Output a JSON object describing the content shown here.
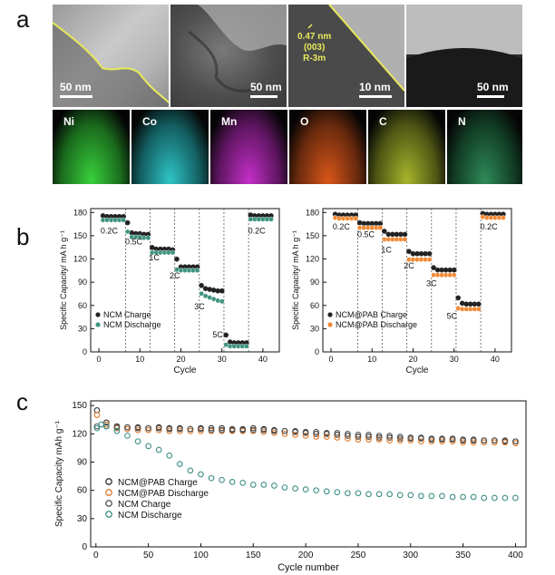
{
  "panel_labels": {
    "a": "a",
    "b": "b",
    "c": "c"
  },
  "panel_a": {
    "tem_images": [
      {
        "scale_bar": "50 nm"
      },
      {
        "scale_bar": "50 nm"
      },
      {
        "scale_bar": "10 nm",
        "annotation_lines": [
          "0.47 nm",
          "(003)",
          "R-3m"
        ]
      },
      {
        "scale_bar": "50 nm"
      }
    ],
    "element_maps": [
      {
        "label": "Ni",
        "color": "#39d13c"
      },
      {
        "label": "Co",
        "color": "#2fc4c6"
      },
      {
        "label": "Mn",
        "color": "#c42fc8"
      },
      {
        "label": "O",
        "color": "#d8561a"
      },
      {
        "label": "C",
        "color": "#a6b62c"
      },
      {
        "label": "N",
        "color": "#2e8a57"
      }
    ]
  },
  "chart_data": [
    {
      "type": "scatter",
      "panel": "b-left",
      "xlabel": "Cycle",
      "ylabel": "Specific Capacity/ mA h g⁻¹",
      "xlim": [
        -2,
        44
      ],
      "ylim": [
        0,
        185
      ],
      "xticks": [
        0,
        10,
        20,
        30,
        40
      ],
      "yticks": [
        0,
        30,
        60,
        90,
        120,
        150,
        180
      ],
      "rate_labels": [
        {
          "text": "0.2C",
          "x": 2.5,
          "y": 153
        },
        {
          "text": "0.5C",
          "x": 8.5,
          "y": 139
        },
        {
          "text": "1C",
          "x": 13.5,
          "y": 118
        },
        {
          "text": "2C",
          "x": 18.5,
          "y": 95
        },
        {
          "text": "3C",
          "x": 24.5,
          "y": 55
        },
        {
          "text": "5C",
          "x": 29.0,
          "y": 19
        },
        {
          "text": "0.2C",
          "x": 38.5,
          "y": 153
        }
      ],
      "dividers": [
        6.5,
        12.5,
        18.5,
        24.5,
        30.5,
        36.5
      ],
      "series": [
        {
          "name": "NCM Charge",
          "color": "#222222",
          "values": [
            174,
            173,
            173,
            173,
            173,
            173,
            165,
            152,
            151,
            151,
            150,
            150,
            133,
            131,
            131,
            131,
            131,
            130,
            118,
            108,
            108,
            108,
            108,
            108,
            84,
            80,
            79,
            78,
            77,
            77,
            20,
            11,
            10,
            10,
            10,
            10,
            175,
            174,
            174,
            174,
            174,
            174
          ]
        },
        {
          "name": "NCM Discharge",
          "color": "#3f9580",
          "values": [
            172,
            172,
            172,
            172,
            172,
            172,
            157,
            150,
            150,
            150,
            149,
            149,
            130,
            130,
            130,
            130,
            130,
            130,
            108,
            107,
            107,
            107,
            107,
            107,
            77,
            74,
            72,
            70,
            68,
            67,
            11,
            9,
            9,
            9,
            9,
            9,
            173,
            173,
            173,
            173,
            173,
            173
          ]
        }
      ]
    },
    {
      "type": "scatter",
      "panel": "b-right",
      "xlabel": "Cycle",
      "ylabel": "Specific Capacity/ mA h g⁻¹",
      "xlim": [
        -2,
        44
      ],
      "ylim": [
        0,
        185
      ],
      "xticks": [
        0,
        10,
        20,
        30,
        40
      ],
      "yticks": [
        0,
        30,
        60,
        90,
        120,
        150,
        180
      ],
      "rate_labels": [
        {
          "text": "0.2C",
          "x": 2.5,
          "y": 158
        },
        {
          "text": "0.5C",
          "x": 8.5,
          "y": 148
        },
        {
          "text": "1C",
          "x": 13.5,
          "y": 128
        },
        {
          "text": "2C",
          "x": 19.0,
          "y": 108
        },
        {
          "text": "3C",
          "x": 24.5,
          "y": 85
        },
        {
          "text": "5C",
          "x": 29.5,
          "y": 43
        },
        {
          "text": "0.2C",
          "x": 38.5,
          "y": 158
        }
      ],
      "dividers": [
        6.5,
        12.5,
        18.5,
        24.5,
        30.5,
        36.5
      ],
      "series": [
        {
          "name": "NCM@PAB Charge",
          "color": "#222222",
          "values": [
            176,
            175,
            175,
            175,
            175,
            175,
            165,
            164,
            164,
            164,
            164,
            164,
            154,
            150,
            150,
            150,
            150,
            150,
            128,
            125,
            125,
            125,
            125,
            125,
            107,
            104,
            104,
            104,
            104,
            104,
            68,
            61,
            60,
            60,
            60,
            60,
            177,
            176,
            176,
            176,
            176,
            176
          ]
        },
        {
          "name": "NCM@PAB Discharge",
          "color": "#f28a36",
          "values": [
            175,
            174,
            174,
            174,
            174,
            174,
            162,
            162,
            162,
            162,
            162,
            162,
            147,
            147,
            147,
            147,
            147,
            147,
            121,
            121,
            121,
            121,
            121,
            121,
            101,
            101,
            101,
            101,
            101,
            101,
            58,
            57,
            57,
            57,
            57,
            57,
            176,
            175,
            175,
            175,
            175,
            175
          ]
        }
      ]
    },
    {
      "type": "scatter",
      "panel": "c",
      "xlabel": "Cycle number",
      "ylabel": "Specific Capacity mAh g⁻¹",
      "xlim": [
        -5,
        410
      ],
      "ylim": [
        0,
        155
      ],
      "xticks": [
        0,
        50,
        100,
        150,
        200,
        250,
        300,
        350,
        400
      ],
      "yticks": [
        0,
        30,
        60,
        90,
        120,
        150
      ],
      "legend_position": "bottom-left",
      "series": [
        {
          "name": "NCM@PAB Charge",
          "color": "#333333",
          "x": [
            1,
            10,
            20,
            30,
            40,
            50,
            60,
            70,
            80,
            90,
            100,
            110,
            120,
            130,
            140,
            150,
            160,
            170,
            180,
            190,
            200,
            210,
            220,
            230,
            240,
            250,
            260,
            270,
            280,
            290,
            300,
            310,
            320,
            330,
            340,
            350,
            360,
            370,
            380,
            390,
            400
          ],
          "values": [
            145,
            132,
            128,
            127,
            127,
            126,
            127,
            126,
            126,
            125,
            126,
            126,
            126,
            125,
            125,
            126,
            125,
            124,
            123,
            122,
            121,
            120,
            120,
            119,
            118,
            117,
            117,
            116,
            116,
            115,
            115,
            115,
            114,
            114,
            114,
            113,
            113,
            113,
            113,
            112,
            112
          ]
        },
        {
          "name": "NCM@PAB  Discharge",
          "color": "#e07a2a",
          "x": [
            1,
            10,
            20,
            30,
            40,
            50,
            60,
            70,
            80,
            90,
            100,
            110,
            120,
            130,
            140,
            150,
            160,
            170,
            180,
            190,
            200,
            210,
            220,
            230,
            240,
            250,
            260,
            270,
            280,
            290,
            300,
            310,
            320,
            330,
            340,
            350,
            360,
            370,
            380,
            390,
            400
          ],
          "values": [
            140,
            130,
            126,
            125,
            124,
            124,
            124,
            123,
            123,
            123,
            123,
            123,
            123,
            123,
            123,
            123,
            122,
            121,
            120,
            119,
            118,
            117,
            117,
            116,
            115,
            114,
            114,
            114,
            113,
            113,
            113,
            112,
            112,
            112,
            112,
            111,
            111,
            111,
            111,
            111,
            110
          ]
        },
        {
          "name": "NCM Charge",
          "color": "#555555",
          "x": [
            1,
            10,
            20,
            30,
            40,
            50,
            60,
            70,
            80,
            90,
            100,
            110,
            120,
            130,
            140,
            150,
            160,
            170,
            180,
            190,
            200,
            210,
            220,
            230,
            240,
            250,
            260,
            270,
            280,
            290,
            300,
            310,
            320,
            330,
            340,
            350,
            360,
            370,
            380,
            390,
            400
          ],
          "values": [
            128,
            128,
            127,
            127,
            126,
            126,
            126,
            125,
            125,
            125,
            125,
            124,
            124,
            124,
            124,
            124,
            124,
            123,
            123,
            123,
            122,
            122,
            121,
            121,
            120,
            119,
            119,
            118,
            118,
            117,
            116,
            116,
            115,
            115,
            115,
            114,
            114,
            113,
            113,
            113,
            112
          ]
        },
        {
          "name": "NCM Discharge",
          "color": "#3d8f86",
          "x": [
            1,
            5,
            10,
            20,
            30,
            40,
            50,
            60,
            70,
            80,
            90,
            100,
            110,
            120,
            130,
            140,
            150,
            160,
            170,
            180,
            190,
            200,
            210,
            220,
            230,
            240,
            250,
            260,
            270,
            280,
            290,
            300,
            310,
            320,
            330,
            340,
            350,
            360,
            370,
            380,
            390,
            400
          ],
          "values": [
            126,
            130,
            128,
            123,
            118,
            112,
            107,
            103,
            97,
            88,
            81,
            77,
            73,
            71,
            69,
            68,
            66,
            66,
            65,
            63,
            62,
            61,
            60,
            59,
            58,
            57,
            57,
            56,
            56,
            56,
            55,
            55,
            54,
            54,
            54,
            53,
            53,
            53,
            52,
            52,
            52,
            52
          ]
        }
      ]
    }
  ]
}
